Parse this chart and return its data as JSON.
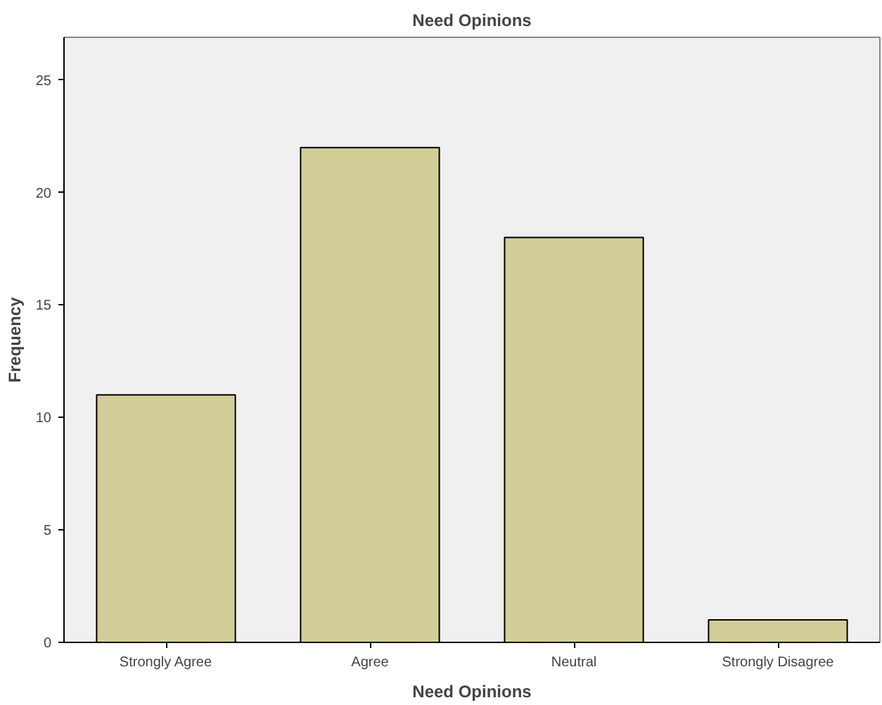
{
  "chart_data": {
    "type": "bar",
    "title": "Need Opinions",
    "xlabel": "Need Opinions",
    "ylabel": "Frequency",
    "categories": [
      "Strongly Agree",
      "Agree",
      "Neutral",
      "Strongly Disagree"
    ],
    "values": [
      11,
      22,
      18,
      1
    ],
    "color": "#d3ce97",
    "ylim": [
      0,
      26.9
    ],
    "yticks": [
      0,
      5,
      10,
      15,
      20,
      25
    ],
    "grid": false
  }
}
